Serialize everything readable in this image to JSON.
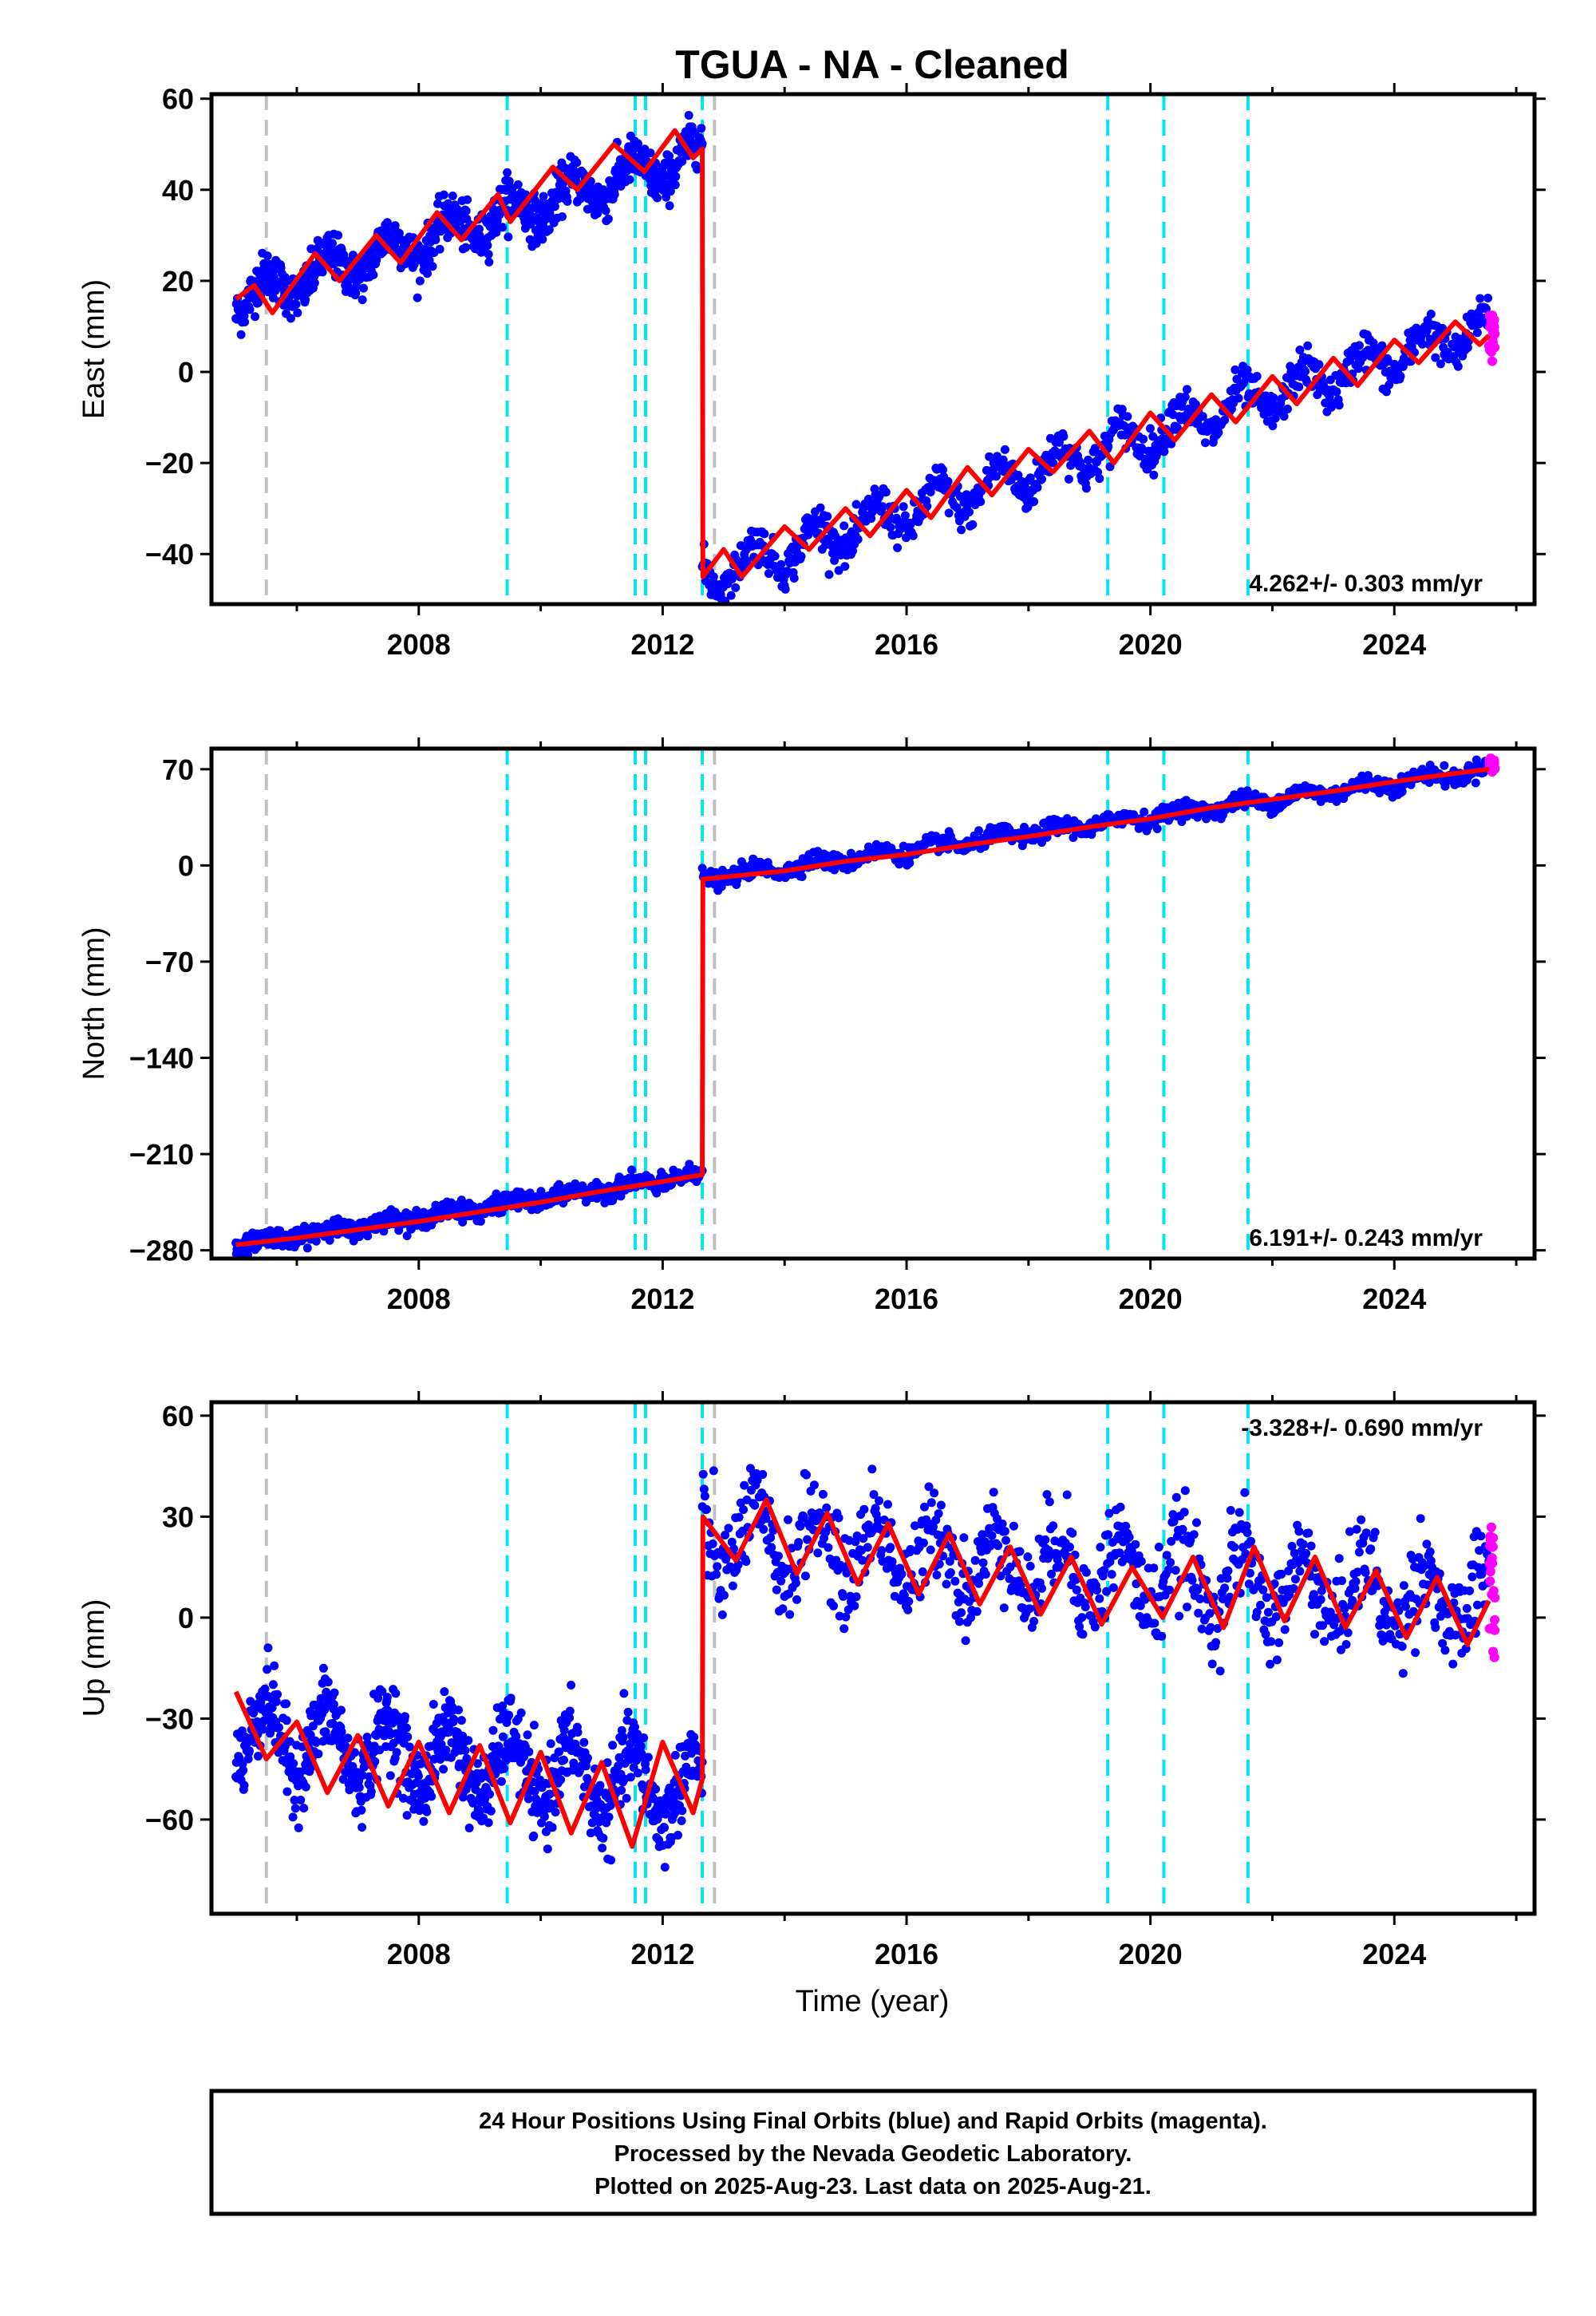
{
  "title": "TGUA  - NA - Cleaned",
  "colors": {
    "final_orbits": "#0000ff",
    "rapid_orbits": "#ff00ff",
    "model_fit": "#ff0000",
    "cyan_events": "#00e5ee",
    "gray_events": "#c0c0c0",
    "frame": "#000000"
  },
  "xlabel": "Time (year)",
  "x_tick_labels": [
    "2008",
    "2012",
    "2016",
    "2020",
    "2024"
  ],
  "caption": [
    "24 Hour Positions Using Final Orbits (blue) and Rapid Orbits (magenta).",
    "Processed by the Nevada Geodetic Laboratory.",
    "Plotted on 2025-Aug-23. Last data on 2025-Aug-21."
  ],
  "chart_data": [
    {
      "type": "scatter",
      "component": "East",
      "ylabel": "East (mm)",
      "xlim": [
        2004.6,
        2026.3
      ],
      "ylim": [
        -51,
        61
      ],
      "x_ticks": [
        2008,
        2012,
        2016,
        2020,
        2024
      ],
      "x_minor_ticks": [
        2006,
        2010,
        2014,
        2018,
        2022,
        2026
      ],
      "y_ticks": [
        -40,
        -20,
        0,
        20,
        40,
        60
      ],
      "y_tick_labels": [
        "−40",
        "−20",
        "0",
        "20",
        "40",
        "60"
      ],
      "rate_label": "4.262+/- 0.303 mm/yr",
      "rate_position": "bottom-right",
      "gray_event_lines": [
        2005.5,
        2012.85
      ],
      "cyan_event_lines": [
        2009.45,
        2011.55,
        2011.72,
        2012.65,
        2019.3,
        2020.22,
        2021.6
      ],
      "segments": [
        {
          "x_start": 2005.0,
          "x_end": 2012.65,
          "y_start": 16,
          "y_end": 48,
          "seasonal_amplitude": 3.5,
          "noise": 2.5
        },
        {
          "x_start": 2012.65,
          "x_end": 2025.55,
          "y_start": -45,
          "y_end": 10,
          "seasonal_amplitude": 4.0,
          "noise": 2.2
        }
      ],
      "rapid_points": {
        "x_start": 2025.55,
        "x_end": 2025.65,
        "y_center": 8,
        "y_spread": 6
      },
      "fit_line": [
        [
          2005.0,
          16
        ],
        [
          2005.3,
          19
        ],
        [
          2005.6,
          13
        ],
        [
          2006.3,
          26
        ],
        [
          2006.7,
          20
        ],
        [
          2007.3,
          30
        ],
        [
          2007.7,
          24
        ],
        [
          2008.3,
          35
        ],
        [
          2008.7,
          29
        ],
        [
          2009.3,
          39
        ],
        [
          2009.5,
          33
        ],
        [
          2010.2,
          45
        ],
        [
          2010.6,
          40
        ],
        [
          2011.2,
          50
        ],
        [
          2011.7,
          44
        ],
        [
          2012.2,
          53
        ],
        [
          2012.5,
          47
        ],
        [
          2012.65,
          49
        ],
        [
          2012.66,
          -45
        ],
        [
          2013.0,
          -39
        ],
        [
          2013.3,
          -45
        ],
        [
          2014.0,
          -34
        ],
        [
          2014.4,
          -39
        ],
        [
          2015.0,
          -30
        ],
        [
          2015.4,
          -36
        ],
        [
          2016.0,
          -26
        ],
        [
          2016.4,
          -32
        ],
        [
          2017.0,
          -21
        ],
        [
          2017.4,
          -27
        ],
        [
          2018.0,
          -17
        ],
        [
          2018.4,
          -22
        ],
        [
          2019.0,
          -13
        ],
        [
          2019.4,
          -20
        ],
        [
          2020.0,
          -9
        ],
        [
          2020.4,
          -15
        ],
        [
          2021.0,
          -5
        ],
        [
          2021.4,
          -11
        ],
        [
          2022.0,
          -1
        ],
        [
          2022.4,
          -7
        ],
        [
          2023.0,
          3
        ],
        [
          2023.4,
          -3
        ],
        [
          2024.0,
          7
        ],
        [
          2024.4,
          2
        ],
        [
          2025.0,
          11
        ],
        [
          2025.4,
          6
        ],
        [
          2025.55,
          8
        ]
      ]
    },
    {
      "type": "scatter",
      "component": "North",
      "ylabel": "North (mm)",
      "xlim": [
        2004.6,
        2026.3
      ],
      "ylim": [
        -286,
        85
      ],
      "x_ticks": [
        2008,
        2012,
        2016,
        2020,
        2024
      ],
      "x_minor_ticks": [
        2006,
        2010,
        2014,
        2018,
        2022,
        2026
      ],
      "y_ticks": [
        -280,
        -210,
        -140,
        -70,
        0,
        70
      ],
      "y_tick_labels": [
        "−280",
        "−210",
        "−140",
        "−70",
        "0",
        "70"
      ],
      "rate_label": "6.191+/- 0.243 mm/yr",
      "rate_position": "bottom-right",
      "gray_event_lines": [
        2005.5,
        2012.85
      ],
      "cyan_event_lines": [
        2009.45,
        2011.55,
        2011.72,
        2012.65,
        2019.3,
        2020.22,
        2021.6
      ],
      "segments": [
        {
          "x_start": 2005.0,
          "x_end": 2012.65,
          "y_start": -276,
          "y_end": -225,
          "seasonal_amplitude": 2.5,
          "noise": 3.0
        },
        {
          "x_start": 2012.65,
          "x_end": 2025.55,
          "y_start": -10,
          "y_end": 70,
          "seasonal_amplitude": 3.0,
          "noise": 3.0
        }
      ],
      "rapid_points": {
        "x_start": 2025.55,
        "x_end": 2025.65,
        "y_center": 73,
        "y_spread": 5
      },
      "fit_line": [
        [
          2005.0,
          -276
        ],
        [
          2006.0,
          -271
        ],
        [
          2007.0,
          -265
        ],
        [
          2008.0,
          -259
        ],
        [
          2009.0,
          -252
        ],
        [
          2010.0,
          -245
        ],
        [
          2011.0,
          -237
        ],
        [
          2012.0,
          -230
        ],
        [
          2012.65,
          -225
        ],
        [
          2012.66,
          -10
        ],
        [
          2014.0,
          -4
        ],
        [
          2015.0,
          3
        ],
        [
          2016.0,
          8
        ],
        [
          2017.0,
          15
        ],
        [
          2018.0,
          21
        ],
        [
          2019.0,
          28
        ],
        [
          2020.0,
          34
        ],
        [
          2021.0,
          42
        ],
        [
          2022.0,
          48
        ],
        [
          2023.0,
          54
        ],
        [
          2024.0,
          61
        ],
        [
          2025.0,
          67
        ],
        [
          2025.55,
          70
        ]
      ]
    },
    {
      "type": "scatter",
      "component": "Up",
      "ylabel": "Up (mm)",
      "xlim": [
        2004.6,
        2026.3
      ],
      "ylim": [
        -88,
        64
      ],
      "x_ticks": [
        2008,
        2012,
        2016,
        2020,
        2024
      ],
      "x_minor_ticks": [
        2006,
        2010,
        2014,
        2018,
        2022,
        2026
      ],
      "y_ticks": [
        -60,
        -30,
        0,
        30,
        60
      ],
      "y_tick_labels": [
        "−60",
        "−30",
        "0",
        "30",
        "60"
      ],
      "rate_label": "-3.328+/- 0.690 mm/yr",
      "rate_position": "top-right",
      "gray_event_lines": [
        2005.5,
        2012.85
      ],
      "cyan_event_lines": [
        2009.45,
        2011.55,
        2011.72,
        2012.65,
        2019.3,
        2020.22,
        2021.6
      ],
      "segments": [
        {
          "x_start": 2005.0,
          "x_end": 2012.65,
          "y_start": -34,
          "y_end": -52,
          "seasonal_amplitude": 10,
          "noise": 6
        },
        {
          "x_start": 2012.65,
          "x_end": 2025.55,
          "y_start": 24,
          "y_end": 4,
          "seasonal_amplitude": 10,
          "noise": 7
        }
      ],
      "rapid_points": {
        "x_start": 2025.55,
        "x_end": 2025.65,
        "y_center": 8,
        "y_spread": 20
      },
      "fit_line": [
        [
          2005.0,
          -22
        ],
        [
          2005.5,
          -42
        ],
        [
          2006.0,
          -31
        ],
        [
          2006.5,
          -52
        ],
        [
          2007.0,
          -35
        ],
        [
          2007.5,
          -56
        ],
        [
          2008.0,
          -37
        ],
        [
          2008.5,
          -58
        ],
        [
          2009.0,
          -38
        ],
        [
          2009.5,
          -61
        ],
        [
          2010.0,
          -40
        ],
        [
          2010.5,
          -64
        ],
        [
          2011.0,
          -43
        ],
        [
          2011.5,
          -68
        ],
        [
          2012.0,
          -37
        ],
        [
          2012.5,
          -58
        ],
        [
          2012.65,
          -48
        ],
        [
          2012.66,
          30
        ],
        [
          2013.2,
          17
        ],
        [
          2013.7,
          35
        ],
        [
          2014.2,
          13
        ],
        [
          2014.7,
          31
        ],
        [
          2015.2,
          10
        ],
        [
          2015.7,
          28
        ],
        [
          2016.2,
          7
        ],
        [
          2016.7,
          25
        ],
        [
          2017.2,
          4
        ],
        [
          2017.7,
          21
        ],
        [
          2018.2,
          1
        ],
        [
          2018.7,
          18
        ],
        [
          2019.2,
          -2
        ],
        [
          2019.7,
          15
        ],
        [
          2020.2,
          0
        ],
        [
          2020.7,
          18
        ],
        [
          2021.2,
          -3
        ],
        [
          2021.7,
          21
        ],
        [
          2022.2,
          -1
        ],
        [
          2022.7,
          18
        ],
        [
          2023.2,
          -3
        ],
        [
          2023.7,
          14
        ],
        [
          2024.2,
          -6
        ],
        [
          2024.7,
          12
        ],
        [
          2025.2,
          -8
        ],
        [
          2025.55,
          5
        ]
      ]
    }
  ]
}
